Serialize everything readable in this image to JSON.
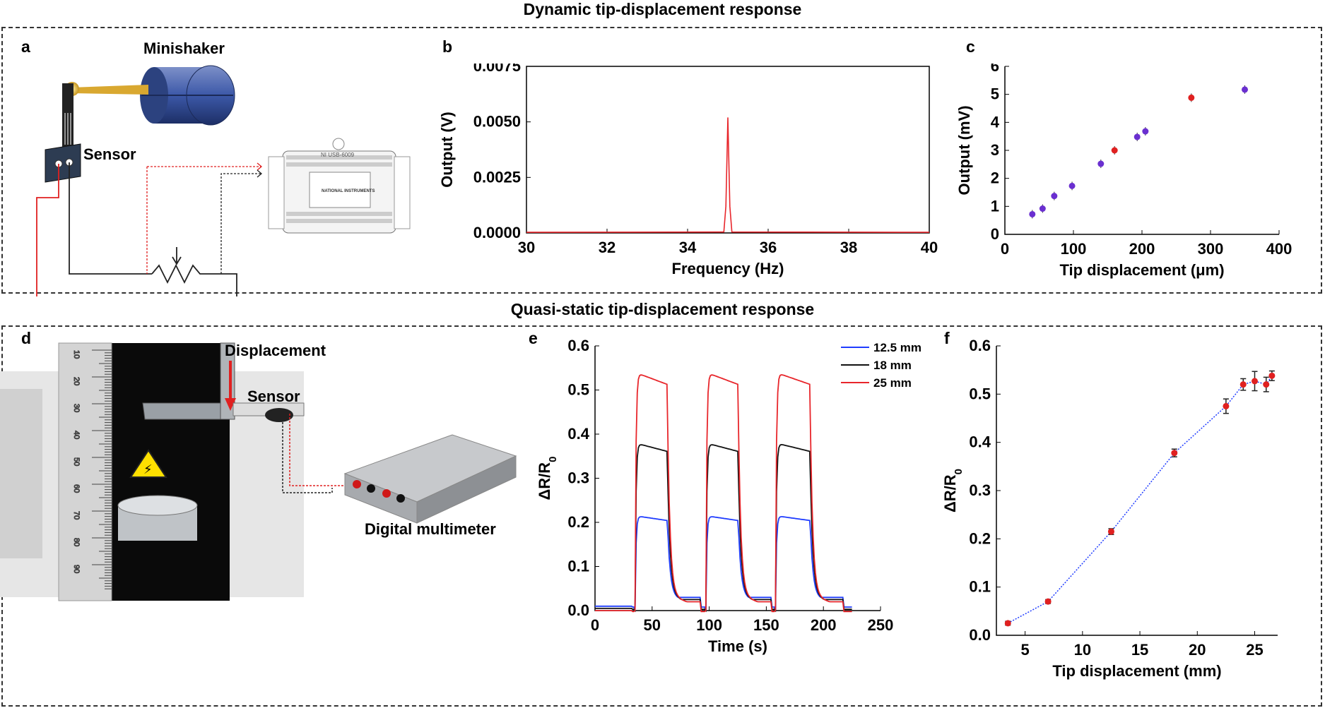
{
  "titles": {
    "top": "Dynamic tip-displacement response",
    "bottom": "Quasi-static tip-displacement response"
  },
  "panel_letters": {
    "a": "a",
    "b": "b",
    "c": "c",
    "d": "d",
    "e": "e",
    "f": "f"
  },
  "schematic_a": {
    "minishaker_label": "Minishaker",
    "sensor_label": "Sensor",
    "daq_title": "NI USB-6009",
    "daq_brand": "NATIONAL INSTRUMENTS"
  },
  "photo_d": {
    "displacement_label": "Displacement",
    "sensor_label": "Sensor",
    "multimeter_label": "Digital multimeter",
    "ruler_ticks": [
      "10",
      "20",
      "30",
      "40",
      "50",
      "60",
      "70",
      "80",
      "90"
    ]
  },
  "colors": {
    "red": "#e02020",
    "blue": "#1f3cff",
    "purple": "#6a2fd0",
    "black": "#111111",
    "trace_red": "#e8262b"
  },
  "chart_data": [
    {
      "id": "b",
      "type": "line",
      "xlabel": "Frequency (Hz)",
      "ylabel": "Output (V)",
      "xlim": [
        30,
        40
      ],
      "ylim": [
        0,
        0.0075
      ],
      "xticks": [
        "30",
        "32",
        "34",
        "36",
        "38",
        "40"
      ],
      "yticks": [
        "0.0000",
        "0.0025",
        "0.0050",
        "0.0075"
      ],
      "series": [
        {
          "x": [
            30,
            34.9,
            34.95,
            35.0,
            35.05,
            35.1,
            40
          ],
          "y": [
            3e-05,
            4e-05,
            0.0012,
            0.0052,
            0.0012,
            4e-05,
            3e-05
          ]
        }
      ]
    },
    {
      "id": "c",
      "type": "scatter",
      "xlabel": "Tip displacement (μm)",
      "ylabel": "Output (mV)",
      "xlim": [
        0,
        400
      ],
      "ylim": [
        0,
        6
      ],
      "xticks": [
        "0",
        "100",
        "200",
        "300",
        "400"
      ],
      "yticks": [
        "0",
        "1",
        "2",
        "3",
        "4",
        "5",
        "6"
      ],
      "series": [
        {
          "x": [
            40,
            55,
            72,
            98,
            140,
            193,
            205,
            350
          ],
          "y": [
            0.72,
            0.92,
            1.37,
            1.73,
            2.52,
            3.48,
            3.68,
            5.17
          ]
        },
        {
          "x": [
            160,
            272
          ],
          "y": [
            3.0,
            4.88
          ]
        }
      ]
    },
    {
      "id": "e",
      "type": "line",
      "xlabel": "Time (s)",
      "ylabel": "ΔR/R0",
      "xlim": [
        0,
        250
      ],
      "ylim": [
        0,
        0.6
      ],
      "xticks": [
        "0",
        "50",
        "100",
        "150",
        "200",
        "250"
      ],
      "yticks": [
        "0.0",
        "0.1",
        "0.2",
        "0.3",
        "0.4",
        "0.5",
        "0.6"
      ],
      "series": [
        {
          "name": "12.5 mm",
          "level": 0.215,
          "base": 0.005
        },
        {
          "name": "18 mm",
          "level": 0.38,
          "base": 0.0
        },
        {
          "name": "25 mm",
          "level": 0.54,
          "base": -0.005
        }
      ],
      "pulses": [
        [
          35,
          63
        ],
        [
          97,
          125
        ],
        [
          158,
          188
        ]
      ]
    },
    {
      "id": "f",
      "type": "line",
      "xlabel": "Tip displacement (mm)",
      "ylabel": "ΔR/R0",
      "xlim": [
        2.5,
        27
      ],
      "ylim": [
        0,
        0.6
      ],
      "xticks": [
        "5",
        "10",
        "15",
        "20",
        "25"
      ],
      "yticks": [
        "0.0",
        "0.1",
        "0.2",
        "0.3",
        "0.4",
        "0.5",
        "0.6"
      ],
      "series": [
        {
          "x": [
            3.5,
            7,
            12.5,
            18,
            22.5,
            24,
            25,
            26,
            26.5
          ],
          "y": [
            0.025,
            0.07,
            0.215,
            0.378,
            0.475,
            0.52,
            0.527,
            0.52,
            0.538
          ],
          "err": [
            0.004,
            0.004,
            0.006,
            0.008,
            0.015,
            0.012,
            0.02,
            0.015,
            0.01
          ]
        }
      ]
    }
  ]
}
